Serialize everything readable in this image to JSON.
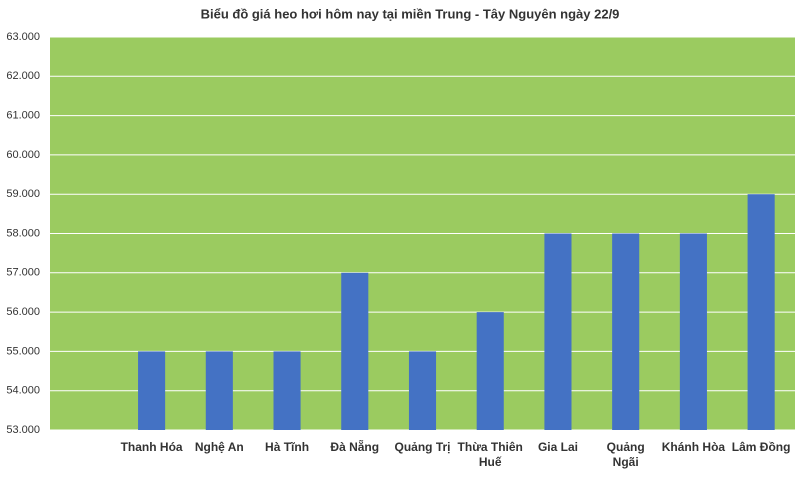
{
  "chart_data": {
    "type": "bar",
    "title": "Biểu đồ giá heo hơi hôm nay tại miền Trung - Tây Nguyên ngày 22/9",
    "categories": [
      null,
      "Thanh Hóa",
      "Nghệ An",
      "Hà Tĩnh",
      "Đà Nẵng",
      "Quảng Trị",
      "Thừa Thiên Huế",
      "Gia Lai",
      "Quảng Ngãi",
      "Khánh Hòa",
      "Lâm Đồng"
    ],
    "values": [
      null,
      55000,
      55000,
      55000,
      57000,
      55000,
      56000,
      58000,
      58000,
      58000,
      59000
    ],
    "color": "#4472c4",
    "plot_color": "#9bcb60",
    "ylim": [
      53000,
      63000
    ],
    "yticks": [
      {
        "value": 53000,
        "label": "53.000"
      },
      {
        "value": 54000,
        "label": "54.000"
      },
      {
        "value": 55000,
        "label": "55.000"
      },
      {
        "value": 56000,
        "label": "56.000"
      },
      {
        "value": 57000,
        "label": "57.000"
      },
      {
        "value": 58000,
        "label": "58.000"
      },
      {
        "value": 59000,
        "label": "59.000"
      },
      {
        "value": 60000,
        "label": "60.000"
      },
      {
        "value": 61000,
        "label": "61.000"
      },
      {
        "value": 62000,
        "label": "62.000"
      },
      {
        "value": 63000,
        "label": "63.000"
      }
    ],
    "grid": true
  }
}
